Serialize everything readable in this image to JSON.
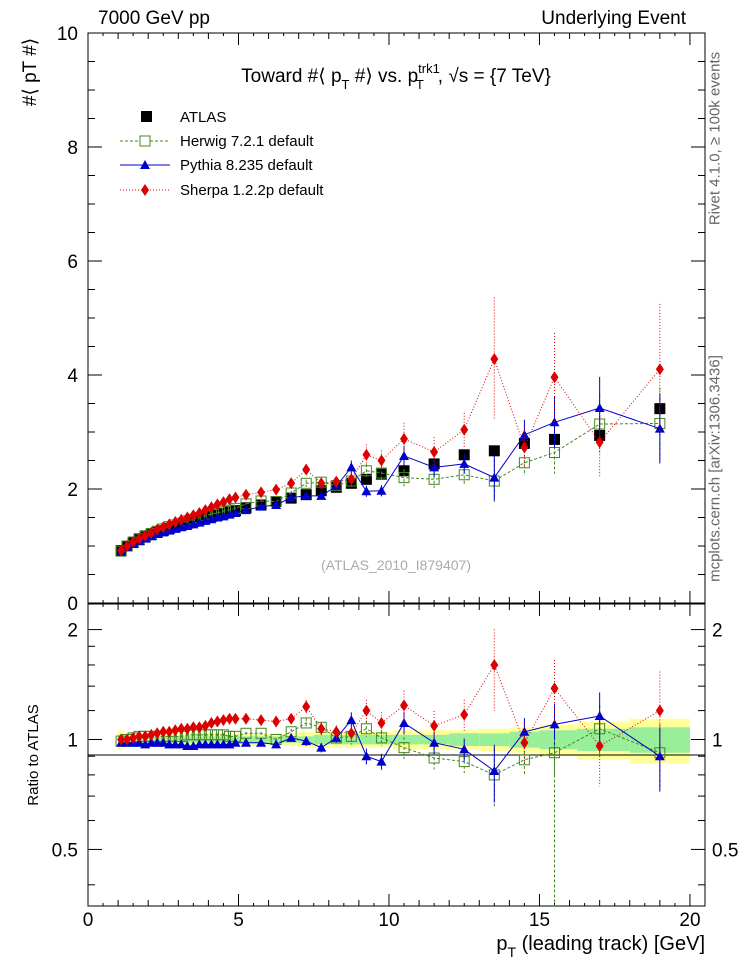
{
  "header": {
    "left": "7000 GeV pp",
    "right": "Underlying Event"
  },
  "side_labels": {
    "rivet": "Rivet 4.1.0, ≥ 100k events",
    "mcplots": "mcplots.cern.ch [arXiv:1306.3436]"
  },
  "chart_data": [
    {
      "type": "scatter",
      "panel": "main",
      "title": "Toward #⟨ pT #⟩ vs. pT trk1, √s = {7 TeV}",
      "title_parts": {
        "pre": "Toward #⟨ p",
        "sub1": "T",
        "mid": " #⟩ vs. p",
        "sup": "trk1",
        "sub2": "T",
        "post": ", √s = {7 TeV}"
      },
      "ylabel": "#⟨ pT #⟩",
      "xlabel": "",
      "xlim": [
        0,
        20.5
      ],
      "ylim": [
        0,
        10
      ],
      "yticks": [
        0,
        2,
        4,
        6,
        8,
        10
      ],
      "watermark": "(ATLAS_2010_I879407)",
      "legend_position": "top-left",
      "legend": [
        "ATLAS",
        "Herwig 7.2.1 default",
        "Pythia 8.235 default",
        "Sherpa 1.2.2p default"
      ],
      "x": [
        1.1,
        1.3,
        1.5,
        1.7,
        1.9,
        2.1,
        2.3,
        2.5,
        2.7,
        2.9,
        3.1,
        3.3,
        3.5,
        3.7,
        3.9,
        4.1,
        4.3,
        4.5,
        4.7,
        4.9,
        5.25,
        5.75,
        6.25,
        6.75,
        7.25,
        7.75,
        8.25,
        8.75,
        9.25,
        9.75,
        10.5,
        11.5,
        12.5,
        13.5,
        14.5,
        15.5,
        17.0,
        19.0
      ],
      "series": [
        {
          "name": "ATLAS",
          "color": "#000000",
          "marker": "square",
          "values": [
            0.92,
            1.0,
            1.06,
            1.11,
            1.16,
            1.2,
            1.24,
            1.27,
            1.31,
            1.34,
            1.37,
            1.4,
            1.43,
            1.46,
            1.49,
            1.52,
            1.54,
            1.57,
            1.6,
            1.62,
            1.67,
            1.72,
            1.78,
            1.84,
            1.9,
            1.97,
            2.03,
            2.1,
            2.17,
            2.26,
            2.32,
            2.44,
            2.6,
            2.67,
            2.8,
            2.87,
            2.94,
            3.41
          ]
        },
        {
          "name": "Herwig 7.2.1 default",
          "color": "#448822",
          "marker": "open-square",
          "values": [
            0.91,
            1.0,
            1.07,
            1.13,
            1.18,
            1.22,
            1.26,
            1.3,
            1.34,
            1.37,
            1.4,
            1.44,
            1.47,
            1.5,
            1.53,
            1.56,
            1.58,
            1.61,
            1.63,
            1.66,
            1.74,
            1.79,
            1.78,
            1.93,
            2.1,
            2.12,
            2.06,
            2.14,
            2.32,
            2.28,
            2.2,
            2.17,
            2.25,
            2.14,
            2.46,
            2.64,
            3.14,
            3.15
          ]
        },
        {
          "name": "Pythia 8.235 default",
          "color": "#0000cc",
          "marker": "triangle",
          "values": [
            0.9,
            0.98,
            1.04,
            1.09,
            1.13,
            1.17,
            1.21,
            1.24,
            1.27,
            1.3,
            1.33,
            1.35,
            1.38,
            1.41,
            1.44,
            1.47,
            1.5,
            1.52,
            1.55,
            1.58,
            1.63,
            1.69,
            1.72,
            1.85,
            1.88,
            1.88,
            2.05,
            2.38,
            1.96,
            1.97,
            2.58,
            2.38,
            2.44,
            2.2,
            2.95,
            3.17,
            3.42,
            3.06
          ]
        },
        {
          "name": "Sherpa 1.2.2p default",
          "color": "#dd0000",
          "marker": "diamond",
          "values": [
            0.92,
            1.0,
            1.07,
            1.13,
            1.18,
            1.23,
            1.29,
            1.33,
            1.38,
            1.42,
            1.46,
            1.5,
            1.54,
            1.58,
            1.63,
            1.68,
            1.73,
            1.77,
            1.82,
            1.85,
            1.9,
            1.94,
            1.99,
            2.1,
            2.34,
            2.1,
            2.13,
            2.17,
            2.6,
            2.5,
            2.88,
            2.65,
            3.04,
            4.28,
            2.73,
            3.96,
            2.82,
            4.1
          ]
        }
      ]
    },
    {
      "type": "scatter",
      "panel": "ratio",
      "ylabel": "Ratio to ATLAS",
      "xlabel": "pT (leading track) [GeV]",
      "xlabel_parts": {
        "pre": "p",
        "sub": "T",
        "post": " (leading track) [GeV]"
      },
      "xlim": [
        0,
        20.5
      ],
      "ylim": [
        0.35,
        2.35
      ],
      "xticks": [
        0,
        5,
        10,
        15,
        20
      ],
      "yticks": [
        0.5,
        1,
        2
      ],
      "x": [
        1.1,
        1.3,
        1.5,
        1.7,
        1.9,
        2.1,
        2.3,
        2.5,
        2.7,
        2.9,
        3.1,
        3.3,
        3.5,
        3.7,
        3.9,
        4.1,
        4.3,
        4.5,
        4.7,
        4.9,
        5.25,
        5.75,
        6.25,
        6.75,
        7.25,
        7.75,
        8.25,
        8.75,
        9.25,
        9.75,
        10.5,
        11.5,
        12.5,
        13.5,
        14.5,
        15.5,
        17.0,
        19.0
      ],
      "band_stat": [
        0.03,
        0.02,
        0.02,
        0.02,
        0.02,
        0.02,
        0.02,
        0.02,
        0.02,
        0.02,
        0.02,
        0.02,
        0.02,
        0.02,
        0.02,
        0.02,
        0.02,
        0.02,
        0.02,
        0.02,
        0.02,
        0.02,
        0.02,
        0.02,
        0.02,
        0.03,
        0.03,
        0.03,
        0.03,
        0.03,
        0.03,
        0.03,
        0.04,
        0.04,
        0.05,
        0.06,
        0.07,
        0.08
      ],
      "band_total": [
        0.06,
        0.04,
        0.04,
        0.04,
        0.04,
        0.04,
        0.04,
        0.04,
        0.04,
        0.04,
        0.04,
        0.04,
        0.04,
        0.04,
        0.04,
        0.04,
        0.04,
        0.04,
        0.04,
        0.04,
        0.04,
        0.04,
        0.04,
        0.04,
        0.05,
        0.05,
        0.05,
        0.05,
        0.05,
        0.05,
        0.06,
        0.06,
        0.06,
        0.07,
        0.08,
        0.1,
        0.12,
        0.14
      ],
      "series": [
        {
          "name": "Herwig 7.2.1 default",
          "color": "#448822",
          "marker": "open-square",
          "values": [
            0.99,
            1.0,
            1.01,
            1.02,
            1.02,
            1.02,
            1.02,
            1.02,
            1.02,
            1.02,
            1.02,
            1.03,
            1.03,
            1.03,
            1.03,
            1.03,
            1.03,
            1.03,
            1.02,
            1.02,
            1.04,
            1.04,
            1.0,
            1.05,
            1.11,
            1.08,
            1.01,
            1.02,
            1.07,
            1.01,
            0.95,
            0.89,
            0.87,
            0.8,
            0.88,
            0.92,
            1.07,
            0.92
          ]
        },
        {
          "name": "Pythia 8.235 default",
          "color": "#0000cc",
          "marker": "triangle",
          "values": [
            0.98,
            0.98,
            0.98,
            0.98,
            0.97,
            0.98,
            0.98,
            0.98,
            0.97,
            0.97,
            0.97,
            0.96,
            0.96,
            0.97,
            0.97,
            0.97,
            0.97,
            0.97,
            0.97,
            0.98,
            0.98,
            0.98,
            0.97,
            1.01,
            0.99,
            0.95,
            1.01,
            1.13,
            0.9,
            0.87,
            1.11,
            0.98,
            0.94,
            0.82,
            1.05,
            1.1,
            1.16,
            0.9
          ]
        },
        {
          "name": "Sherpa 1.2.2p default",
          "color": "#dd0000",
          "marker": "diamond",
          "values": [
            1.0,
            1.0,
            1.01,
            1.02,
            1.02,
            1.03,
            1.04,
            1.05,
            1.05,
            1.06,
            1.07,
            1.07,
            1.08,
            1.08,
            1.09,
            1.11,
            1.12,
            1.13,
            1.14,
            1.14,
            1.14,
            1.13,
            1.12,
            1.14,
            1.23,
            1.07,
            1.05,
            1.04,
            1.2,
            1.11,
            1.24,
            1.09,
            1.17,
            1.6,
            0.98,
            1.38,
            0.96,
            1.2
          ]
        }
      ]
    }
  ]
}
